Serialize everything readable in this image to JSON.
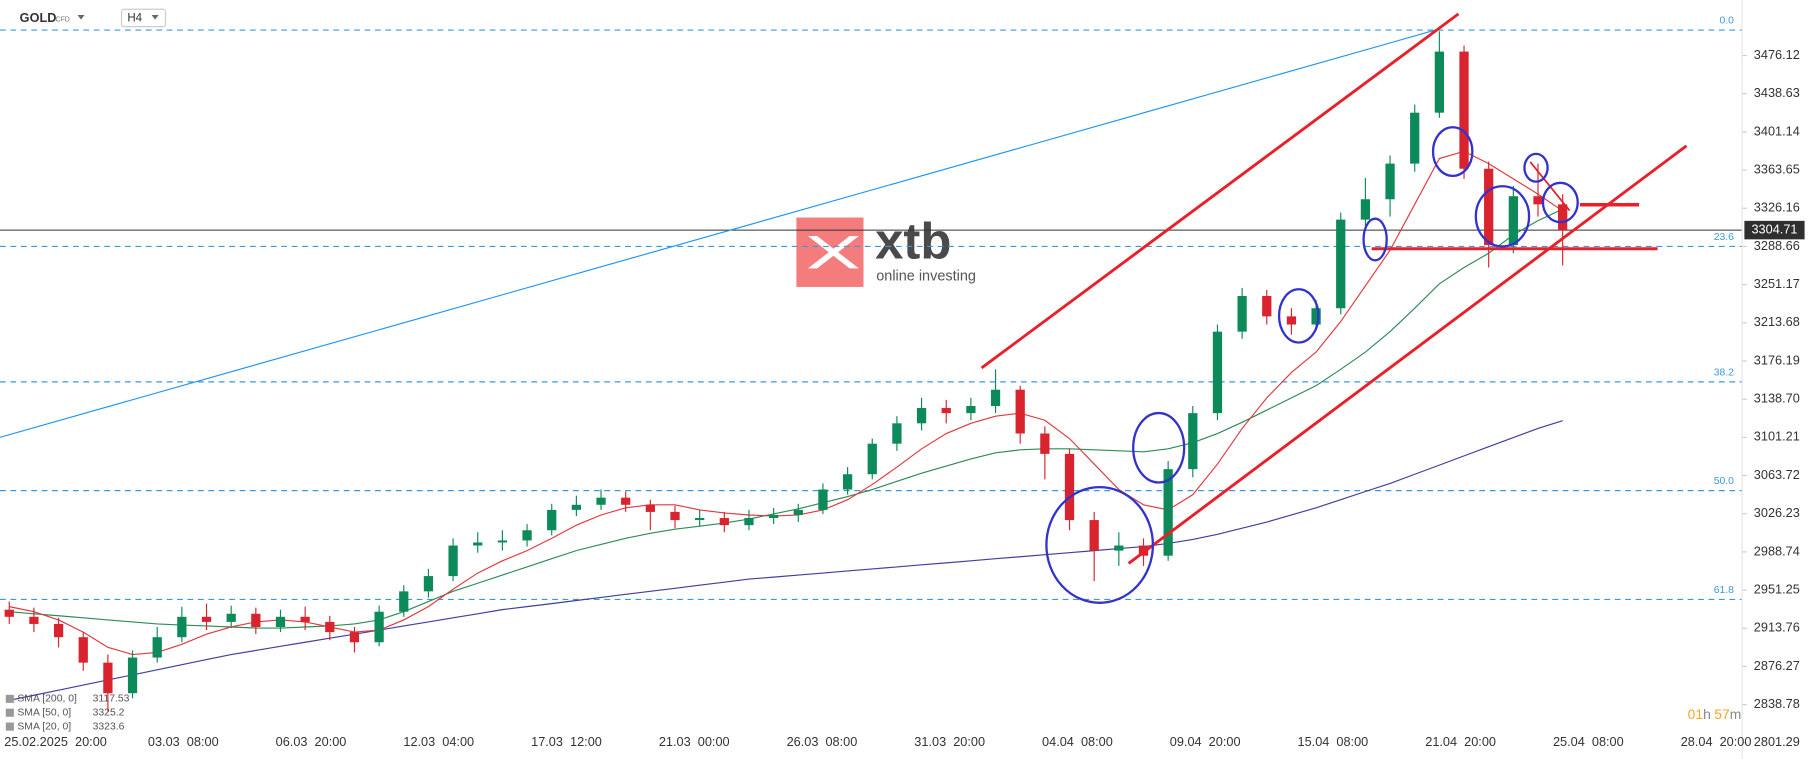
{
  "chart_data": {
    "type": "candlestick",
    "title": "GOLD",
    "subtitle": "CFD",
    "interval": "H4",
    "logo": {
      "brand": "xtb",
      "tagline": "online investing"
    },
    "ylim": [
      2785.39,
      3530.65
    ],
    "yticks": [
      2801.29,
      2838.78,
      2876.27,
      2913.76,
      2951.25,
      2988.74,
      3026.23,
      3063.72,
      3101.21,
      {
        "value": 3138.7,
        "label": "3138.70"
      },
      3176.19,
      3213.68,
      3251.17,
      3288.66,
      3326.16,
      3363.65,
      3401.14,
      3438.63,
      3476.12
    ],
    "xtick_labels": [
      "25.02.2025  20:00",
      "03.03  08:00",
      "06.03  20:00",
      "12.03  04:00",
      "17.03  12:00",
      "21.03  00:00",
      "26.03  08:00",
      "31.03  20:00",
      "04.04  08:00",
      "09.04  20:00",
      "15.04  08:00",
      "21.04  20:00",
      "25.04  08:00",
      "28.04  20:00"
    ],
    "current_price": 3304.71,
    "fib_levels": [
      {
        "label": "0.0",
        "value": 3501.1
      },
      {
        "label": "23.6",
        "value": 3288.65
      },
      {
        "label": "38.2",
        "value": 3155.7
      },
      {
        "label": "50.0",
        "value": 3048.9
      },
      {
        "label": "61.8",
        "value": 2942.1
      }
    ],
    "up_color": "#0c8a5a",
    "down_color": "#d9232e",
    "open": [
      2932,
      2925,
      2918,
      2905,
      2880,
      2850,
      2885,
      2905,
      2925,
      2920,
      2928,
      2915,
      2925,
      2920,
      2910,
      2900,
      2930,
      2950,
      2965,
      2995,
      2998,
      3000,
      3010,
      3030,
      3035,
      3042,
      3035,
      3028,
      3020,
      3022,
      3015,
      3022,
      3025,
      3030,
      3050,
      3065,
      3095,
      3115,
      3130,
      3125,
      3132,
      3148,
      3105,
      3085,
      3020,
      2990,
      2995,
      2985,
      3070,
      3125,
      3205,
      3240,
      3220,
      3212,
      3228,
      3315,
      3335,
      3370,
      3420,
      3480,
      3365,
      3290,
      3338,
      3330
    ],
    "high": [
      2940,
      2934,
      2924,
      2910,
      2888,
      2892,
      2915,
      2935,
      2938,
      2936,
      2934,
      2932,
      2935,
      2926,
      2915,
      2936,
      2956,
      2972,
      3002,
      3008,
      3010,
      3016,
      3036,
      3044,
      3050,
      3048,
      3040,
      3034,
      3030,
      3028,
      3030,
      3032,
      3036,
      3056,
      3072,
      3100,
      3122,
      3140,
      3138,
      3140,
      3168,
      3152,
      3112,
      3090,
      3028,
      3008,
      3002,
      3078,
      3132,
      3212,
      3248,
      3246,
      3228,
      3236,
      3322,
      3356,
      3378,
      3428,
      3500,
      3486,
      3372,
      3348,
      3370,
      3340
    ],
    "low": [
      2918,
      2910,
      2895,
      2872,
      2832,
      2845,
      2880,
      2900,
      2912,
      2914,
      2908,
      2910,
      2912,
      2902,
      2890,
      2896,
      2925,
      2944,
      2960,
      2988,
      2990,
      2994,
      3005,
      3024,
      3030,
      3028,
      3010,
      3012,
      3014,
      3008,
      3010,
      3016,
      3018,
      3026,
      3045,
      3060,
      3088,
      3108,
      3115,
      3118,
      3125,
      3095,
      3060,
      3010,
      2960,
      2975,
      2975,
      2980,
      3062,
      3118,
      3198,
      3212,
      3202,
      3206,
      3222,
      3305,
      3318,
      3362,
      3415,
      3355,
      3268,
      3282,
      3318,
      3270
    ],
    "close": [
      2925,
      2918,
      2905,
      2880,
      2850,
      2885,
      2905,
      2925,
      2920,
      2928,
      2915,
      2925,
      2920,
      2910,
      2900,
      2930,
      2950,
      2965,
      2995,
      2998,
      3000,
      3010,
      3030,
      3035,
      3042,
      3035,
      3028,
      3020,
      3022,
      3015,
      3022,
      3025,
      3030,
      3050,
      3065,
      3095,
      3115,
      3130,
      3125,
      3132,
      3148,
      3105,
      3085,
      3020,
      2990,
      2995,
      2985,
      3070,
      3125,
      3205,
      3240,
      3220,
      3212,
      3228,
      3315,
      3335,
      3370,
      3420,
      3480,
      3365,
      3290,
      3338,
      3330,
      3304.71
    ],
    "indicators": [
      {
        "name": "SMA [200, 0]",
        "last": 3117.53,
        "color": "#3f3f9e",
        "values": [
          2843,
          2848,
          2853,
          2858,
          2863,
          2868,
          2873,
          2878,
          2883,
          2888,
          2892,
          2896,
          2900,
          2904,
          2908,
          2912,
          2916,
          2920,
          2924,
          2928,
          2932,
          2935,
          2938,
          2941,
          2944,
          2947,
          2950,
          2953,
          2956,
          2959,
          2962,
          2964,
          2966,
          2968,
          2970,
          2972,
          2974,
          2976,
          2978,
          2980,
          2982,
          2984,
          2986,
          2988,
          2990,
          2992,
          2994,
          2997,
          3001,
          3006,
          3012,
          3018,
          3025,
          3032,
          3040,
          3048,
          3056,
          3065,
          3074,
          3083,
          3092,
          3101,
          3110,
          3117.53
        ]
      },
      {
        "name": "SMA [50, 0]",
        "last": 3325.2,
        "color": "#2e8b57",
        "values": [
          2930,
          2928,
          2926,
          2924,
          2922,
          2920,
          2918,
          2917,
          2916,
          2915,
          2914,
          2914,
          2915,
          2916,
          2918,
          2922,
          2930,
          2940,
          2950,
          2958,
          2966,
          2974,
          2982,
          2990,
          2996,
          3002,
          3007,
          3011,
          3014,
          3017,
          3021,
          3026,
          3031,
          3037,
          3043,
          3050,
          3058,
          3066,
          3073,
          3080,
          3086,
          3089,
          3090,
          3090,
          3089,
          3088,
          3087,
          3090,
          3096,
          3105,
          3116,
          3128,
          3140,
          3152,
          3168,
          3185,
          3205,
          3228,
          3252,
          3268,
          3282,
          3300,
          3314,
          3325.2
        ]
      },
      {
        "name": "SMA [20, 0]",
        "last": 3323.6,
        "color": "#e0393e",
        "values": [
          2935,
          2930,
          2922,
          2910,
          2895,
          2888,
          2890,
          2898,
          2908,
          2915,
          2920,
          2922,
          2920,
          2915,
          2910,
          2912,
          2922,
          2935,
          2952,
          2968,
          2980,
          2990,
          3002,
          3015,
          3025,
          3032,
          3035,
          3035,
          3030,
          3027,
          3025,
          3024,
          3025,
          3030,
          3040,
          3055,
          3072,
          3090,
          3105,
          3115,
          3122,
          3125,
          3118,
          3100,
          3075,
          3050,
          3035,
          3030,
          3045,
          3075,
          3110,
          3140,
          3165,
          3185,
          3215,
          3250,
          3285,
          3330,
          3375,
          3382,
          3370,
          3355,
          3340,
          3323.6
        ]
      }
    ],
    "timer": {
      "hours": "01",
      "hours_unit": "h",
      "minutes": "57",
      "minutes_unit": "m"
    }
  }
}
